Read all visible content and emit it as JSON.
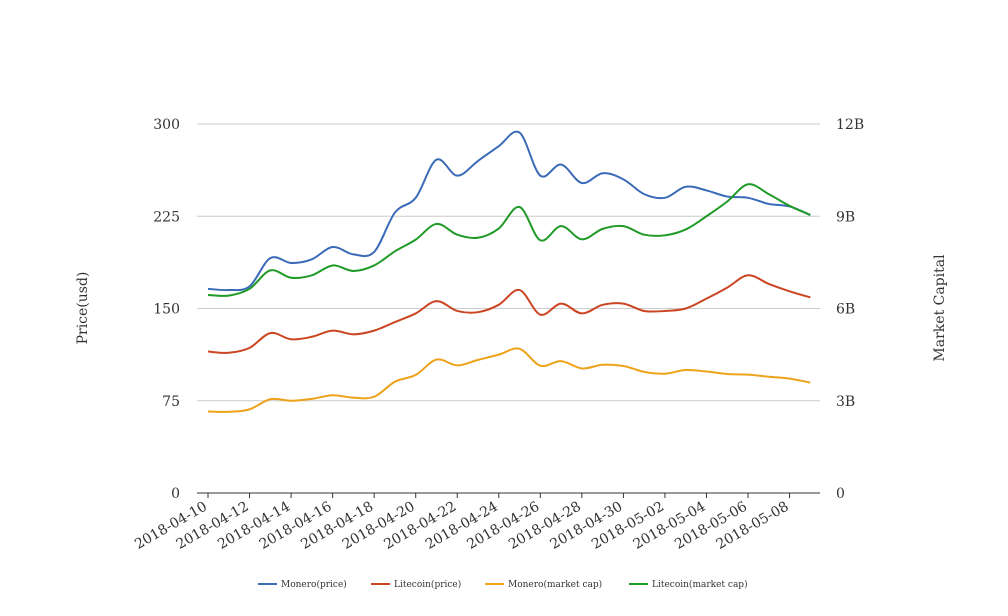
{
  "chart_data": {
    "type": "line",
    "x": [
      "2018-04-10",
      "2018-04-11",
      "2018-04-12",
      "2018-04-13",
      "2018-04-14",
      "2018-04-15",
      "2018-04-16",
      "2018-04-17",
      "2018-04-18",
      "2018-04-19",
      "2018-04-20",
      "2018-04-21",
      "2018-04-22",
      "2018-04-23",
      "2018-04-24",
      "2018-04-25",
      "2018-04-26",
      "2018-04-27",
      "2018-04-28",
      "2018-04-29",
      "2018-04-30",
      "2018-05-01",
      "2018-05-02",
      "2018-05-03",
      "2018-05-04",
      "2018-05-05",
      "2018-05-06",
      "2018-05-07",
      "2018-05-08",
      "2018-05-09"
    ],
    "x_tick_labels": [
      "2018-04-10",
      "2018-04-12",
      "2018-04-14",
      "2018-04-16",
      "2018-04-18",
      "2018-04-20",
      "2018-04-22",
      "2018-04-24",
      "2018-04-26",
      "2018-04-28",
      "2018-04-30",
      "2018-05-02",
      "2018-05-04",
      "2018-05-06",
      "2018-05-08"
    ],
    "ylabel": "Price(usd)",
    "y2label": "Market Capital",
    "ylim": [
      0,
      300
    ],
    "y_ticks": [
      0,
      75,
      150,
      225,
      300
    ],
    "y_tick_labels": [
      "0",
      "75",
      "150",
      "225",
      "300"
    ],
    "y2lim": [
      0,
      12000000000
    ],
    "y2_ticks": [
      0,
      3000000000,
      6000000000,
      9000000000,
      12000000000
    ],
    "y2_tick_labels": [
      "0",
      "3B",
      "6B",
      "9B",
      "12B"
    ],
    "grid": true,
    "legend": "bottom",
    "series": [
      {
        "name": "Monero(price)",
        "axis": "left",
        "color": "#3a6ab8",
        "values": [
          166,
          165,
          168,
          191,
          187,
          190,
          200,
          194,
          196,
          228,
          240,
          271,
          258,
          270,
          282,
          293,
          258,
          267,
          252,
          260,
          255,
          243,
          240,
          249,
          246,
          241,
          240,
          235,
          233,
          226
        ]
      },
      {
        "name": "Litecoin(price)",
        "axis": "left",
        "color": "#cc4522",
        "values": [
          115,
          114,
          118,
          130,
          125,
          127,
          132,
          129,
          132,
          139,
          146,
          156,
          148,
          147,
          153,
          165,
          145,
          154,
          146,
          153,
          154,
          148,
          148,
          150,
          158,
          167,
          177,
          170,
          164,
          159
        ]
      },
      {
        "name": "Monero(market cap)",
        "axis": "right",
        "color": "#eda21a",
        "values": [
          2650000000,
          2640000000,
          2720000000,
          3050000000,
          3000000000,
          3060000000,
          3180000000,
          3100000000,
          3130000000,
          3620000000,
          3840000000,
          4340000000,
          4150000000,
          4330000000,
          4500000000,
          4690000000,
          4140000000,
          4290000000,
          4050000000,
          4170000000,
          4130000000,
          3940000000,
          3880000000,
          4000000000,
          3950000000,
          3870000000,
          3850000000,
          3780000000,
          3720000000,
          3590000000
        ]
      },
      {
        "name": "Litecoin(market cap)",
        "axis": "right",
        "color": "#1f9a27",
        "values": [
          6440000000,
          6420000000,
          6640000000,
          7240000000,
          7000000000,
          7080000000,
          7400000000,
          7220000000,
          7400000000,
          7860000000,
          8240000000,
          8750000000,
          8400000000,
          8300000000,
          8600000000,
          9300000000,
          8220000000,
          8680000000,
          8250000000,
          8590000000,
          8680000000,
          8400000000,
          8380000000,
          8570000000,
          9000000000,
          9480000000,
          10040000000,
          9720000000,
          9340000000,
          9040000000
        ]
      }
    ]
  }
}
